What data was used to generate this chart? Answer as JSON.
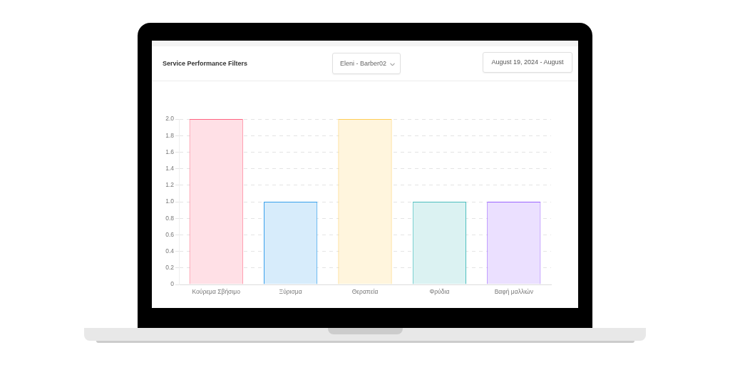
{
  "chart_data": {
    "type": "bar",
    "title": "Service Performance Filters",
    "annotations": [
      "Eleni - Barber02",
      "August 19, 2024 - August"
    ],
    "categories": [
      "Κούρεμα Σβήσιμο",
      "Ξύρισμα",
      "Θεραπεία",
      "Φρύδια",
      "Βαφή μαλλιών"
    ],
    "values": [
      2,
      1,
      2,
      1,
      1
    ],
    "colors": [
      "#ffe0e6",
      "#d7ecfb",
      "#fff5dd",
      "#dbf2f2",
      "#ebe0ff"
    ],
    "ylim": [
      0,
      2
    ],
    "yticks": [
      0,
      0.2,
      0.4,
      0.6,
      0.8,
      {
        "value": 1,
        "label": "1.0"
      },
      1.2,
      1.4,
      1.6,
      1.8,
      {
        "value": 2,
        "label": "2.0"
      }
    ],
    "grid": "y"
  }
}
